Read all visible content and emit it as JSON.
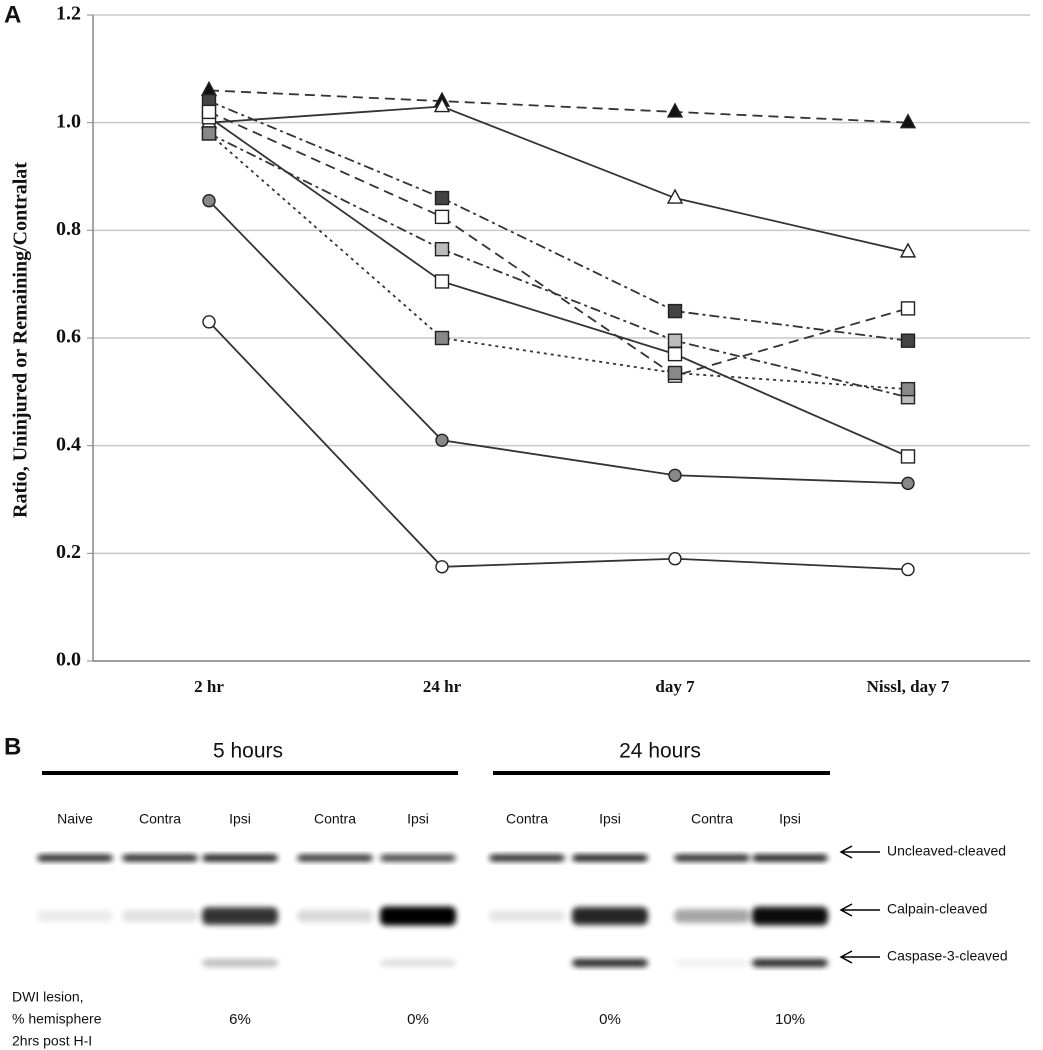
{
  "chart_data": {
    "type": "line",
    "ylabel": "Ratio, Uninjured or Remaining/Contralat",
    "categories": [
      "2 hr",
      "24 hr",
      "day 7",
      "Nissl, day 7"
    ],
    "ylim": [
      0,
      1.2
    ],
    "yticks": [
      {
        "value": 0,
        "label": "0.0"
      },
      {
        "value": 0.2,
        "label": "0.2"
      },
      {
        "value": 0.4,
        "label": "0.4"
      },
      {
        "value": 0.6,
        "label": "0.6"
      },
      {
        "value": 0.8,
        "label": "0.8"
      },
      {
        "value": 1,
        "label": "1.0"
      },
      {
        "value": 1.2,
        "label": "1.2"
      }
    ],
    "grid": true,
    "series": [
      {
        "marker": "triangle",
        "color": "#111111",
        "dash": "long",
        "values": [
          1.06,
          1.04,
          1.02,
          1.0
        ]
      },
      {
        "marker": "triangle",
        "color": "#ffffff",
        "dash": "solid",
        "values": [
          1.0,
          1.03,
          0.86,
          0.76
        ]
      },
      {
        "marker": "square",
        "color": "#444444",
        "dash": "dashdot",
        "values": [
          1.04,
          0.86,
          0.65,
          0.595
        ]
      },
      {
        "marker": "square",
        "color": "#ffffff",
        "dash": "solid",
        "values": [
          1.01,
          0.705,
          0.57,
          0.38
        ]
      },
      {
        "marker": "square",
        "color": "#ffffff",
        "dash": "long",
        "values": [
          1.02,
          0.825,
          0.53,
          0.655
        ]
      },
      {
        "marker": "square",
        "color": "#bbbbbb",
        "dash": "dashdot",
        "values": [
          0.98,
          0.765,
          0.595,
          0.49
        ]
      },
      {
        "marker": "square",
        "color": "#888888",
        "dash": "dotted",
        "values": [
          0.98,
          0.6,
          0.535,
          0.505
        ]
      },
      {
        "marker": "circle",
        "color": "#888888",
        "dash": "solid",
        "values": [
          0.855,
          0.41,
          0.345,
          0.33
        ]
      },
      {
        "marker": "circle",
        "color": "#ffffff",
        "dash": "solid",
        "values": [
          0.63,
          0.175,
          0.19,
          0.17
        ]
      }
    ]
  },
  "panel_labels": [
    "A",
    "B"
  ],
  "blot": {
    "groups": [
      "5 hours",
      "24 hours"
    ],
    "lanes": [
      "Naive",
      "Contra",
      "Ipsi",
      "Contra",
      "Ipsi",
      "Contra",
      "Ipsi",
      "Contra",
      "Ipsi"
    ],
    "bands": [
      "Uncleaved-cleaved",
      "Calpain-cleaved",
      "Caspase-3-cleaved"
    ],
    "lesion_label": [
      "DWI lesion,",
      "% hemisphere",
      "2hrs post H-I"
    ],
    "lesion_values": [
      "6%",
      "0%",
      "0%",
      "10%"
    ]
  }
}
